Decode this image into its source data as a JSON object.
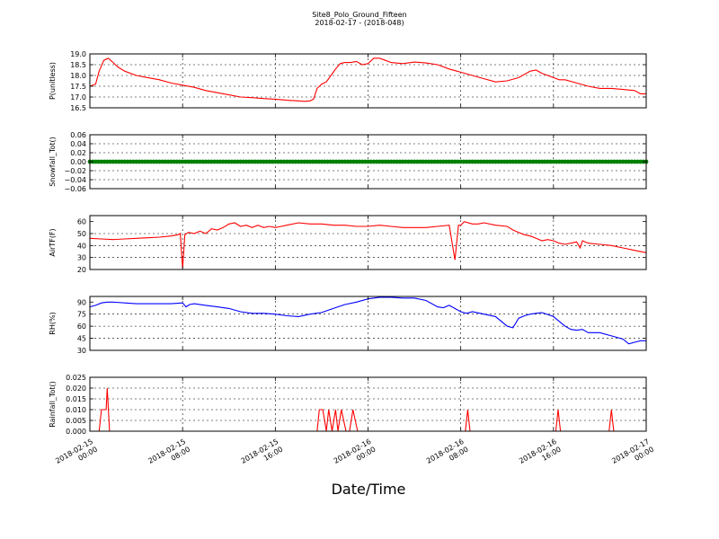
{
  "title_line1": "Site8_Polo_Ground_Fifteen",
  "title_line2": "2018-02-17 - (2018-048)",
  "xlabel": "Date/Time",
  "colors": {
    "red": "#ff0000",
    "green": "#008000",
    "blue": "#0000ff"
  },
  "chart_data": {
    "type": "line",
    "x_range": [
      "2018-02-15 00:00",
      "2018-02-17 00:00"
    ],
    "x_ticks": [
      {
        "line1": "2018-02-15",
        "line2": "00:00"
      },
      {
        "line1": "2018-02-15",
        "line2": "08:00"
      },
      {
        "line1": "2018-02-15",
        "line2": "16:00"
      },
      {
        "line1": "2018-02-16",
        "line2": "00:00"
      },
      {
        "line1": "2018-02-16",
        "line2": "08:00"
      },
      {
        "line1": "2018-02-16",
        "line2": "16:00"
      },
      {
        "line1": "2018-02-17",
        "line2": "00:00"
      }
    ],
    "x_tick_hours": [
      0,
      8,
      16,
      24,
      32,
      40,
      48
    ],
    "grid": true,
    "panels": [
      {
        "ylabel": "P(unitless)",
        "ylim": [
          16.5,
          19.0
        ],
        "yticks": [
          "16.5",
          "17.0",
          "17.5",
          "18.0",
          "18.5",
          "19.0"
        ],
        "ytick_values": [
          16.5,
          17.0,
          17.5,
          18.0,
          18.5,
          19.0
        ],
        "color": "#ff0000",
        "x_hours": [
          0,
          0.5,
          0.8,
          1.2,
          1.6,
          2.0,
          2.4,
          3,
          4,
          5,
          6,
          7,
          8,
          9,
          10,
          11,
          12,
          13,
          14,
          15,
          16,
          17,
          18,
          18.5,
          19,
          19.3,
          19.6,
          20,
          20.4,
          20.8,
          21.2,
          21.6,
          22,
          22.5,
          23,
          23.5,
          24,
          24.5,
          25,
          25.5,
          26,
          27,
          28,
          29,
          30,
          31,
          32,
          33,
          34,
          35,
          36,
          37,
          38,
          38.5,
          39,
          39.5,
          40,
          40.5,
          41,
          42,
          43,
          44,
          45,
          46,
          47,
          47.5,
          48
        ],
        "values": [
          17.5,
          17.6,
          18.2,
          18.7,
          18.8,
          18.6,
          18.4,
          18.2,
          18.0,
          17.9,
          17.8,
          17.65,
          17.55,
          17.45,
          17.3,
          17.2,
          17.1,
          17.0,
          16.97,
          16.93,
          16.9,
          16.85,
          16.82,
          16.8,
          16.82,
          16.9,
          17.4,
          17.6,
          17.7,
          18.0,
          18.3,
          18.55,
          18.6,
          18.6,
          18.65,
          18.5,
          18.55,
          18.8,
          18.8,
          18.7,
          18.6,
          18.55,
          18.62,
          18.58,
          18.5,
          18.3,
          18.15,
          18.0,
          17.85,
          17.7,
          17.75,
          17.9,
          18.2,
          18.25,
          18.1,
          18.0,
          17.9,
          17.8,
          17.8,
          17.65,
          17.5,
          17.4,
          17.4,
          17.35,
          17.3,
          17.15,
          17.15
        ]
      },
      {
        "ylabel": "Snowfall_Tot()",
        "ylim": [
          -0.06,
          0.06
        ],
        "yticks": [
          "−0.06",
          "−0.04",
          "−0.02",
          "0.00",
          "0.02",
          "0.04",
          "0.06"
        ],
        "ytick_values": [
          -0.06,
          -0.04,
          -0.02,
          0.0,
          0.02,
          0.04,
          0.06
        ],
        "color": "#008000",
        "markers": true,
        "x_hours": [
          0,
          48
        ],
        "values": [
          0.0,
          0.0
        ]
      },
      {
        "ylabel": "AirTF(F)",
        "ylim": [
          20,
          65
        ],
        "yticks": [
          "20",
          "30",
          "40",
          "50",
          "60"
        ],
        "ytick_values": [
          20,
          30,
          40,
          50,
          60
        ],
        "color": "#ff0000",
        "x_hours": [
          0,
          1,
          2,
          3,
          4,
          5,
          6,
          7,
          7.6,
          7.8,
          8,
          8.2,
          8.5,
          9,
          9.5,
          10,
          10.5,
          11,
          11.5,
          12,
          12.5,
          13,
          13.5,
          14,
          14.5,
          15,
          15.5,
          16,
          16.5,
          17,
          18,
          19,
          20,
          21,
          22,
          23,
          24,
          25,
          26,
          27,
          28,
          29,
          30,
          31,
          31.5,
          31.8,
          32,
          32.3,
          33,
          33.5,
          34,
          35,
          36,
          36.5,
          37,
          37.5,
          38,
          38.5,
          39,
          39.5,
          40,
          40.5,
          41,
          42,
          42.3,
          42.5,
          43,
          44,
          45,
          46,
          47,
          48
        ],
        "values": [
          46,
          45.5,
          45,
          45.5,
          46,
          46.5,
          47,
          48,
          49,
          50,
          21,
          49,
          51,
          50,
          52,
          50,
          54,
          53,
          55,
          58,
          59,
          56,
          57,
          55,
          57,
          55,
          56,
          55,
          56,
          57,
          59,
          58,
          58,
          57,
          57,
          56,
          56,
          57,
          56,
          55,
          55,
          55,
          56,
          57,
          28,
          57,
          57,
          60,
          58,
          58,
          59,
          57,
          56,
          53,
          51,
          49,
          48,
          46,
          44,
          45,
          44,
          42,
          41,
          43,
          38,
          44,
          42,
          41,
          40,
          38,
          36,
          34
        ]
      },
      {
        "ylabel": "RH(%)",
        "ylim": [
          30,
          97
        ],
        "yticks": [
          "30",
          "45",
          "60",
          "75",
          "90"
        ],
        "ytick_values": [
          30,
          45,
          60,
          75,
          90
        ],
        "color": "#0000ff",
        "x_hours": [
          0,
          0.5,
          1,
          1.5,
          2,
          3,
          4,
          5,
          6,
          7,
          8,
          8.3,
          8.6,
          9,
          10,
          11,
          12,
          13,
          14,
          15,
          16,
          17,
          18,
          19,
          20,
          21,
          22,
          23,
          24,
          25,
          26,
          27,
          28,
          29,
          30,
          30.5,
          31,
          31.5,
          32,
          32.5,
          33,
          34,
          35,
          36,
          36.5,
          37,
          37.5,
          38,
          39,
          40,
          40.5,
          41,
          41.5,
          42,
          42.5,
          43,
          44,
          45,
          46,
          46.5,
          47,
          47.5,
          48
        ],
        "values": [
          84,
          86,
          89,
          90,
          90,
          89,
          88,
          88,
          88,
          88,
          89,
          84,
          87,
          88,
          86,
          84,
          82,
          78,
          76,
          76,
          75,
          73,
          72,
          75,
          77,
          82,
          87,
          90,
          94,
          96,
          96,
          95,
          95,
          92,
          84,
          83,
          86,
          82,
          78,
          76,
          78,
          75,
          72,
          60,
          58,
          70,
          73,
          75,
          77,
          72,
          66,
          60,
          56,
          55,
          56,
          52,
          52,
          48,
          44,
          38,
          40,
          42,
          42
        ]
      },
      {
        "ylabel": "Rainfall_Tot()",
        "ylim": [
          0.0,
          0.025
        ],
        "yticks": [
          "0.000",
          "0.005",
          "0.010",
          "0.015",
          "0.020",
          "0.025"
        ],
        "ytick_values": [
          0.0,
          0.005,
          0.01,
          0.015,
          0.02,
          0.025
        ],
        "color": "#ff0000",
        "x_hours": [
          0,
          0.8,
          1.0,
          1.4,
          1.5,
          1.7,
          2.0,
          19.6,
          19.8,
          20.1,
          20.4,
          20.6,
          20.9,
          21.2,
          21.4,
          21.7,
          22.1,
          22.4,
          22.7,
          23.1,
          23.3,
          23.6,
          24,
          32.4,
          32.6,
          32.8,
          40,
          40.2,
          40.4,
          40.6,
          44.8,
          45,
          45.2,
          48
        ],
        "values": [
          0,
          0,
          0.01,
          0.01,
          0.02,
          0,
          0,
          0,
          0.01,
          0.01,
          0,
          0.01,
          0,
          0.01,
          0,
          0.01,
          0,
          0,
          0.01,
          0,
          0,
          0,
          0,
          0,
          0.01,
          0,
          0,
          0,
          0.01,
          0,
          0,
          0.01,
          0,
          0
        ]
      }
    ]
  }
}
